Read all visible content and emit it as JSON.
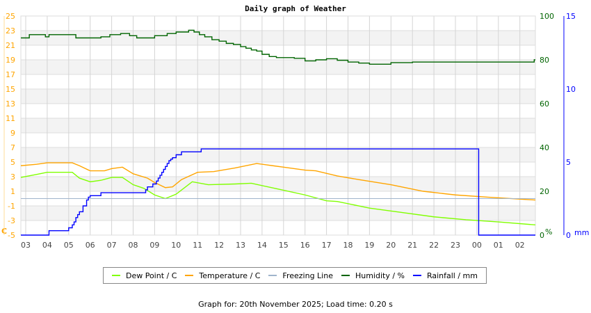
{
  "chart_data": {
    "type": "line",
    "title": "Daily graph of Weather",
    "x_tick_labels": [
      "03",
      "04",
      "05",
      "06",
      "07",
      "08",
      "09",
      "10",
      "11",
      "12",
      "13",
      "14",
      "15",
      "16",
      "17",
      "18",
      "19",
      "20",
      "21",
      "22",
      "23",
      "00",
      "01",
      "02"
    ],
    "y_left": {
      "unit": "C",
      "range": [
        -5,
        25
      ],
      "ticks": [
        25,
        23,
        21,
        19,
        17,
        15,
        13,
        11,
        9,
        7,
        5,
        3,
        1,
        -1,
        -3,
        -5
      ],
      "color": "#ffa500"
    },
    "y_right_humidity": {
      "unit": "%",
      "range": [
        0,
        100
      ],
      "ticks": [
        100,
        80,
        60,
        40,
        20,
        0
      ],
      "color": "#006400"
    },
    "y_right_rain": {
      "unit": "mm",
      "range": [
        0,
        15
      ],
      "ticks": [
        15,
        10,
        5,
        0
      ],
      "color": "#0000ff"
    },
    "grid": true,
    "legend_placement": "bottom",
    "series": [
      {
        "name": "Dew Point / C",
        "axis": "left",
        "color": "#80ff00",
        "x": [
          "02:46",
          "03:30",
          "04:00",
          "05:10",
          "05:30",
          "06:00",
          "06:30",
          "07:00",
          "07:30",
          "08:00",
          "08:30",
          "09:00",
          "09:30",
          "10:00",
          "10:45",
          "11:30",
          "12:45",
          "13:30",
          "14:45",
          "16:00",
          "17:00",
          "17:30",
          "19:00",
          "20:30",
          "22:00",
          "23:30",
          "01:00",
          "02:45"
        ],
        "y": [
          2.9,
          3.3,
          3.6,
          3.6,
          2.8,
          2.3,
          2.5,
          2.9,
          2.9,
          1.9,
          1.4,
          0.5,
          0.0,
          0.6,
          2.3,
          1.9,
          2.0,
          2.1,
          1.3,
          0.5,
          -0.3,
          -0.4,
          -1.3,
          -1.9,
          -2.5,
          -2.9,
          -3.2,
          -3.6
        ]
      },
      {
        "name": "Temperature / C",
        "axis": "left",
        "color": "#ffa500",
        "x": [
          "02:46",
          "03:30",
          "04:00",
          "05:10",
          "05:30",
          "06:00",
          "06:40",
          "07:00",
          "07:30",
          "08:00",
          "08:40",
          "09:00",
          "09:30",
          "09:50",
          "10:15",
          "11:00",
          "11:45",
          "12:45",
          "13:45",
          "14:30",
          "15:00",
          "16:00",
          "16:30",
          "17:30",
          "18:30",
          "20:00",
          "21:30",
          "23:00",
          "00:30",
          "02:45"
        ],
        "y": [
          4.5,
          4.7,
          4.9,
          4.9,
          4.5,
          3.8,
          3.8,
          4.1,
          4.3,
          3.4,
          2.8,
          2.2,
          1.5,
          1.6,
          2.6,
          3.6,
          3.7,
          4.2,
          4.8,
          4.5,
          4.3,
          3.9,
          3.8,
          3.1,
          2.6,
          1.9,
          1.0,
          0.5,
          0.2,
          -0.2
        ]
      },
      {
        "name": "Freezing Line",
        "axis": "left",
        "color": "#a0b4cc",
        "x": [
          "02:46",
          "02:45"
        ],
        "y": [
          0,
          0
        ]
      },
      {
        "name": "Humidity / %",
        "axis": "humidity",
        "color": "#006400",
        "step": true,
        "x": [
          "02:46",
          "03:10",
          "03:55",
          "04:05",
          "05:20",
          "06:30",
          "06:55",
          "07:25",
          "07:50",
          "08:10",
          "09:00",
          "09:35",
          "10:00",
          "10:35",
          "10:50",
          "11:05",
          "11:20",
          "11:40",
          "12:00",
          "12:20",
          "12:40",
          "13:00",
          "13:15",
          "13:30",
          "13:45",
          "14:00",
          "14:20",
          "14:40",
          "15:30",
          "16:00",
          "16:30",
          "17:00",
          "17:30",
          "18:00",
          "18:30",
          "19:00",
          "20:00",
          "21:00",
          "02:30",
          "02:40"
        ],
        "y": [
          90,
          91.5,
          90.5,
          91.5,
          90,
          90.5,
          91.5,
          92,
          91,
          90,
          91,
          92,
          92.7,
          93.5,
          92.7,
          91.5,
          90.5,
          89.2,
          88.5,
          87.5,
          87,
          86,
          85.3,
          84.5,
          84,
          82.5,
          81.5,
          81,
          80.7,
          79.5,
          80,
          80.5,
          79.8,
          79,
          78.5,
          78,
          78.7,
          79,
          79,
          80
        ]
      },
      {
        "name": "Rainfall / mm",
        "axis": "rain",
        "color": "#0000ff",
        "step": true,
        "x": [
          "02:46",
          "04:05",
          "05:00",
          "05:10",
          "05:15",
          "05:20",
          "05:25",
          "05:30",
          "05:40",
          "05:50",
          "05:55",
          "06:00",
          "06:30",
          "08:35",
          "08:40",
          "08:55",
          "09:05",
          "09:10",
          "09:15",
          "09:20",
          "09:25",
          "09:30",
          "09:35",
          "09:40",
          "09:45",
          "09:50",
          "10:00",
          "10:15",
          "11:10",
          "00:00",
          "00:05",
          "02:45"
        ],
        "y": [
          0,
          0.3,
          0.5,
          0.7,
          0.9,
          1.2,
          1.4,
          1.6,
          2.0,
          2.4,
          2.6,
          2.7,
          2.9,
          3.1,
          3.3,
          3.5,
          3.7,
          3.9,
          4.1,
          4.3,
          4.5,
          4.7,
          4.9,
          5.1,
          5.2,
          5.3,
          5.5,
          5.7,
          5.9,
          5.9,
          0,
          0
        ]
      }
    ],
    "footer": "Graph for: 20th November 2025; Load time: 0.20 s"
  }
}
